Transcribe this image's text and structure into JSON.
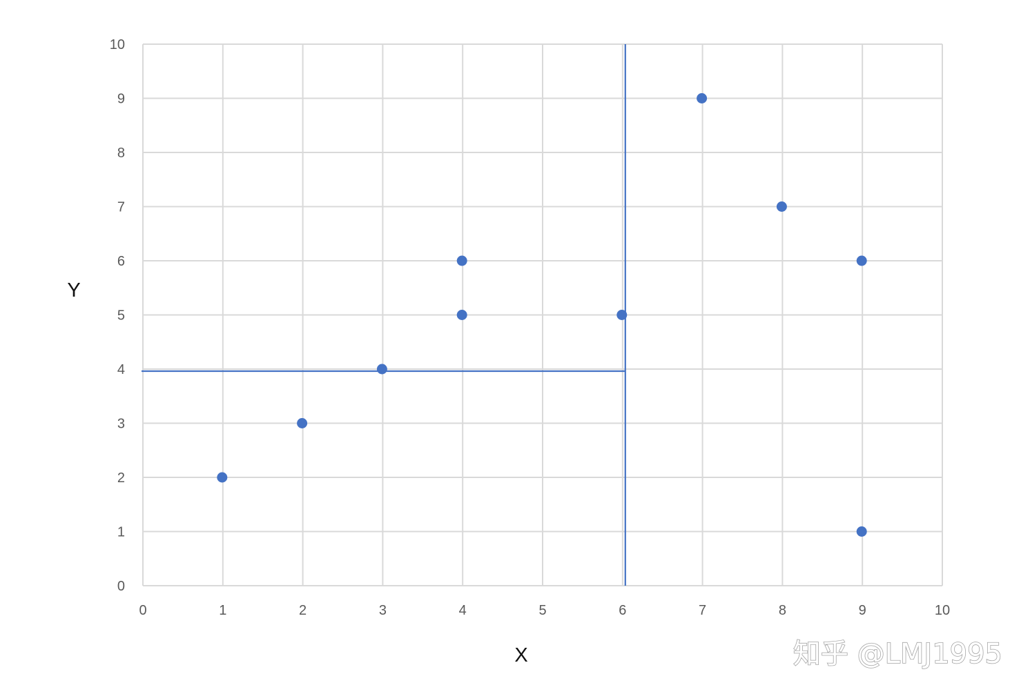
{
  "chart_data": {
    "type": "scatter",
    "title": "",
    "xlabel": "X",
    "ylabel": "Y",
    "xlim": [
      0,
      10
    ],
    "ylim": [
      0,
      10
    ],
    "x_ticks": [
      "0",
      "1",
      "2",
      "3",
      "4",
      "5",
      "6",
      "7",
      "8",
      "9",
      "10"
    ],
    "y_ticks": [
      "0",
      "1",
      "2",
      "3",
      "4",
      "5",
      "6",
      "7",
      "8",
      "9",
      "10"
    ],
    "grid": true,
    "legend": "none",
    "series": [
      {
        "color": "#4472C4",
        "points": [
          {
            "x": 1,
            "y": 2
          },
          {
            "x": 2,
            "y": 3
          },
          {
            "x": 3,
            "y": 4
          },
          {
            "x": 4,
            "y": 5
          },
          {
            "x": 4,
            "y": 6
          },
          {
            "x": 6,
            "y": 5
          },
          {
            "x": 7,
            "y": 9
          },
          {
            "x": 8,
            "y": 7
          },
          {
            "x": 9,
            "y": 6
          },
          {
            "x": 9,
            "y": 1
          }
        ]
      }
    ],
    "split_lines": [
      {
        "orientation": "vertical",
        "x": 6,
        "y_from": 0,
        "y_to": 10,
        "color": "#4472C4"
      },
      {
        "orientation": "horizontal",
        "y": 4,
        "x_from": 0,
        "x_to": 6,
        "color": "#4472C4"
      }
    ],
    "colors": {
      "grid": "#D9D9D9",
      "marker": "#4472C4",
      "tick_label": "#595959",
      "axis_title": "#111111"
    }
  },
  "watermark": {
    "text": "知乎 @LMJ1995"
  }
}
